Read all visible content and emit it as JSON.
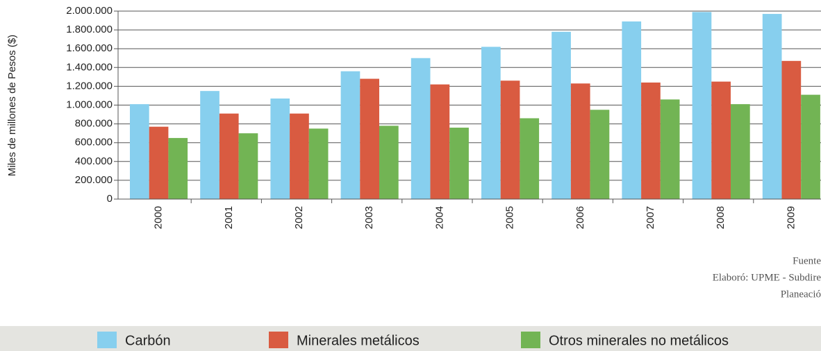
{
  "chart_data": {
    "type": "bar",
    "y_label": "Miles de millones de Pesos ($)",
    "categories": [
      "2000",
      "2001",
      "2002",
      "2003",
      "2004",
      "2005",
      "2006",
      "2007",
      "2008",
      "2009"
    ],
    "series": [
      {
        "name": "Carbón",
        "color": "#87cfee",
        "values": [
          1010000,
          1150000,
          1070000,
          1360000,
          1500000,
          1620000,
          1780000,
          1890000,
          1990000,
          1970000
        ]
      },
      {
        "name": "Minerales metálicos",
        "color": "#d95b41",
        "values": [
          770000,
          910000,
          910000,
          1280000,
          1220000,
          1260000,
          1230000,
          1240000,
          1250000,
          1470000
        ]
      },
      {
        "name": "Otros minerales no metálicos",
        "color": "#72b454",
        "values": [
          650000,
          700000,
          750000,
          780000,
          760000,
          860000,
          950000,
          1060000,
          1010000,
          1110000
        ]
      }
    ],
    "ylim": [
      0,
      2000000
    ],
    "yticks": [
      0,
      {
        "value": 200000,
        "label": "200.000"
      },
      {
        "value": 400000,
        "label": "400.000"
      },
      {
        "value": 600000,
        "label": "600.000"
      },
      {
        "value": 800000,
        "label": "800.000"
      },
      {
        "value": 1000000,
        "label": "1.000.000"
      },
      {
        "value": 1200000,
        "label": "1.200.000"
      },
      {
        "value": 1400000,
        "label": "1.400.000"
      },
      {
        "value": 1600000,
        "label": "1.600.000"
      },
      {
        "value": 1800000,
        "label": "1.800.000"
      },
      {
        "value": 2000000,
        "label": "2.000.000"
      }
    ],
    "grid": true,
    "legend": "bottom",
    "footnote": [
      "Fuente",
      "Elaboró: UPME - Subdire",
      "Planeació"
    ]
  }
}
